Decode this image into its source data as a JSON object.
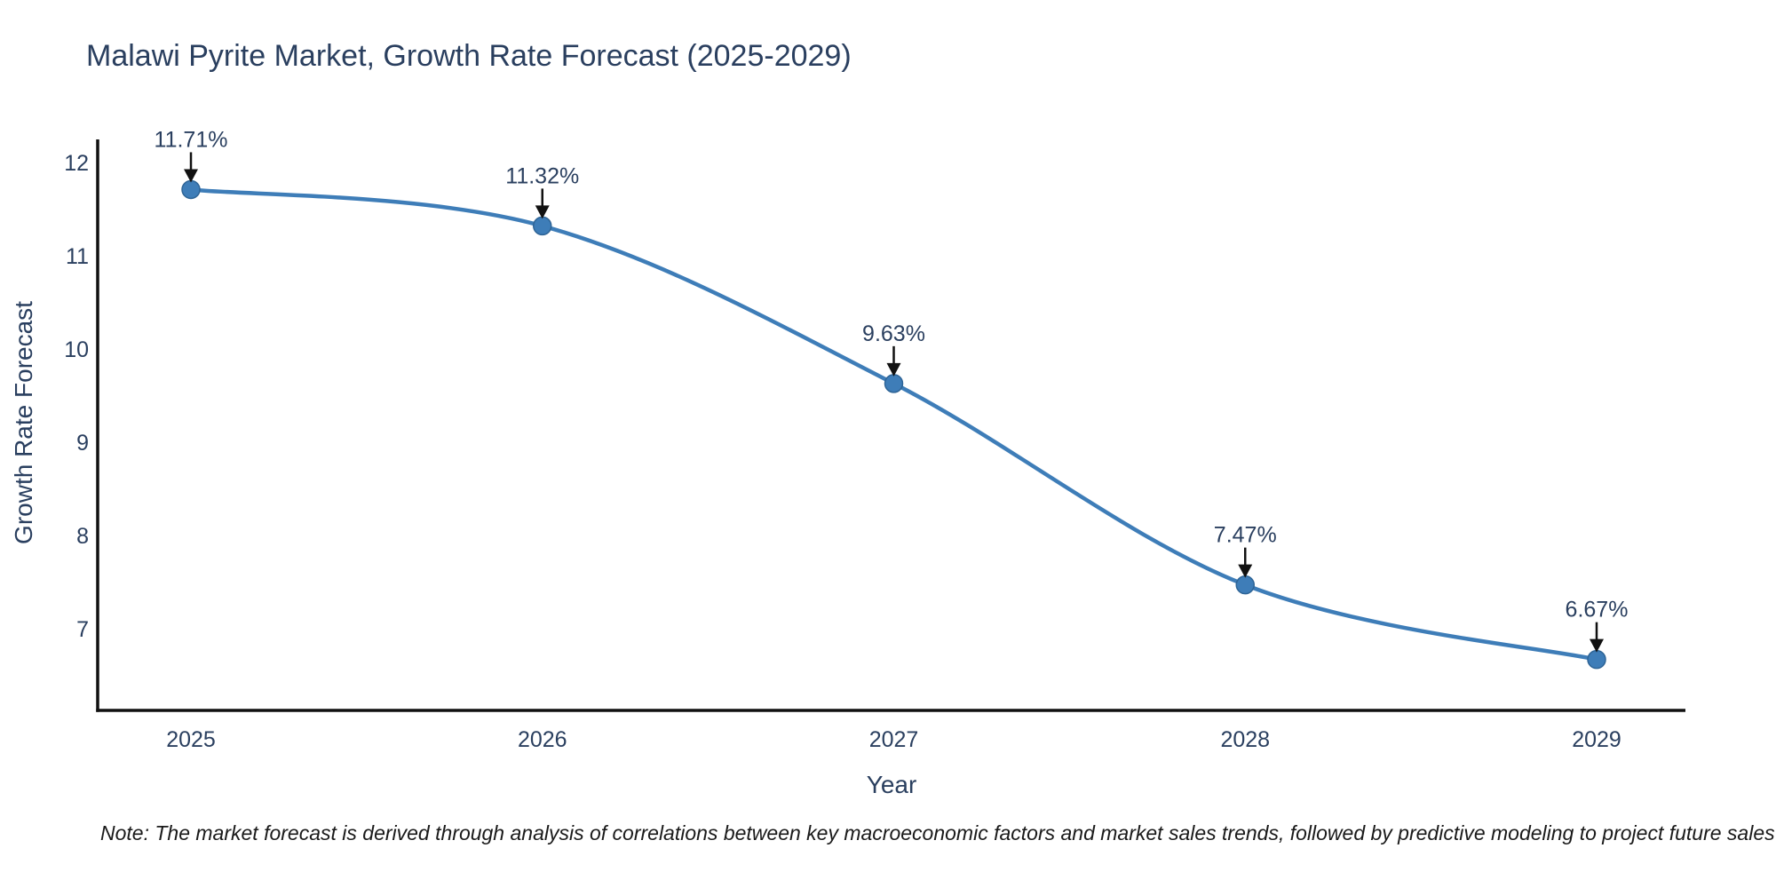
{
  "note": "Note: The market forecast is derived through analysis of correlations between key macroeconomic factors and market sales trends, followed by predictive modeling to project future sales",
  "chart_data": {
    "type": "line",
    "title": "Malawi Pyrite Market, Growth Rate Forecast (2025-2029)",
    "xlabel": "Year",
    "ylabel": "Growth Rate Forecast",
    "x": [
      2025,
      2026,
      2027,
      2028,
      2029
    ],
    "values": [
      11.71,
      11.32,
      9.63,
      7.47,
      6.67
    ],
    "point_labels": [
      "11.71%",
      "11.32%",
      "9.63%",
      "7.47%",
      "6.67%"
    ],
    "yticks": [
      12,
      11,
      10,
      9,
      8,
      7
    ],
    "ylim": [
      6.12,
      12.24
    ],
    "curve": "spline",
    "grid": false,
    "legend_position": "none",
    "colors": {
      "line": "#3e7db8",
      "marker": "#3e7db8",
      "marker_edge": "#2e6496",
      "text": "#2a3f5f",
      "axis": "#111111",
      "annotation_arrow": "#111111",
      "note_text": "#1a1a1a",
      "background": "#ffffff"
    }
  }
}
